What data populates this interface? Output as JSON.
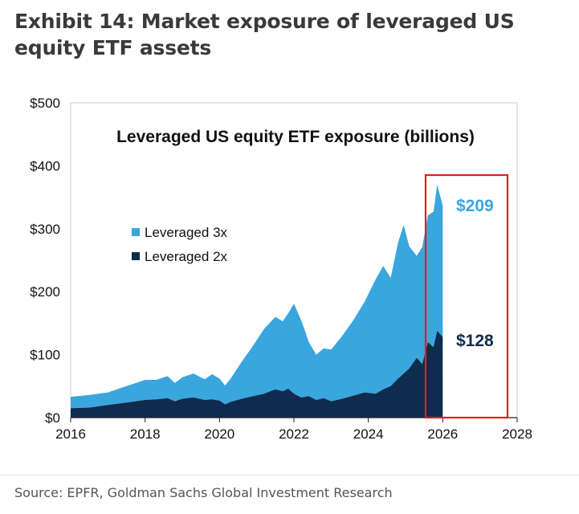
{
  "exhibit": {
    "title": "Exhibit 14: Market exposure of leveraged US equity ETF assets",
    "source": "Source: EPFR, Goldman Sachs Global Investment Research"
  },
  "colors": {
    "three_x": "#3aa6de",
    "two_x": "#0e2c4d",
    "highlight_box": "#e02020",
    "axis_text": "#111111"
  },
  "chart_data": {
    "type": "area",
    "stacked": true,
    "title": "Leveraged US equity ETF exposure (billions)",
    "xlabel": "",
    "ylabel": "",
    "xlim": [
      2016,
      2028
    ],
    "ylim": [
      0,
      500
    ],
    "x_ticks": [
      "2016",
      "2018",
      "2020",
      "2022",
      "2024",
      "2026",
      "2028"
    ],
    "y_ticks": [
      "$0",
      "$100",
      "$200",
      "$300",
      "$400",
      "$500"
    ],
    "grid": false,
    "legend_position": "left",
    "x": [
      2016.0,
      2016.5,
      2017.0,
      2017.5,
      2018.0,
      2018.3,
      2018.6,
      2018.8,
      2019.0,
      2019.3,
      2019.6,
      2019.8,
      2020.0,
      2020.15,
      2020.3,
      2020.6,
      2020.9,
      2021.2,
      2021.5,
      2021.7,
      2021.85,
      2022.0,
      2022.2,
      2022.4,
      2022.6,
      2022.8,
      2023.0,
      2023.3,
      2023.6,
      2023.9,
      2024.2,
      2024.4,
      2024.6,
      2024.8,
      2024.95,
      2025.1,
      2025.3,
      2025.45,
      2025.6,
      2025.75,
      2025.85,
      2026.0
    ],
    "series": [
      {
        "name": "Leveraged 2x",
        "values": [
          15,
          16,
          20,
          24,
          28,
          29,
          31,
          26,
          30,
          32,
          28,
          29,
          27,
          21,
          25,
          30,
          34,
          38,
          45,
          42,
          46,
          38,
          32,
          34,
          28,
          31,
          26,
          30,
          35,
          40,
          38,
          45,
          50,
          62,
          70,
          78,
          95,
          85,
          120,
          112,
          138,
          128
        ]
      },
      {
        "name": "Leveraged 3x",
        "values": [
          18,
          20,
          20,
          26,
          32,
          31,
          35,
          29,
          34,
          38,
          33,
          40,
          35,
          30,
          37,
          59,
          80,
          103,
          115,
          111,
          120,
          143,
          122,
          86,
          72,
          79,
          82,
          100,
          120,
          144,
          182,
          196,
          172,
          216,
          236,
          194,
          162,
          186,
          201,
          215,
          232,
          209
        ]
      }
    ],
    "annotations": [
      {
        "label": "$209",
        "series": "Leveraged 3x"
      },
      {
        "label": "$128",
        "series": "Leveraged 2x"
      }
    ]
  }
}
